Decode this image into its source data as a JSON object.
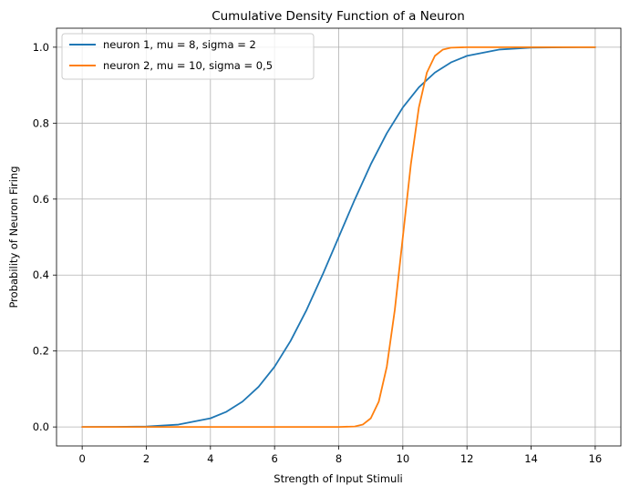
{
  "chart_data": {
    "type": "line",
    "title": "Cumulative Density Function of a Neuron",
    "xlabel": "Strength of Input Stimuli",
    "ylabel": "Probability of Neuron Firing",
    "xlim": [
      -0.8,
      16.8
    ],
    "ylim": [
      -0.05,
      1.05
    ],
    "xticks": [
      0,
      2,
      4,
      6,
      8,
      10,
      12,
      14,
      16
    ],
    "yticks": [
      0.0,
      0.2,
      0.4,
      0.6,
      0.8,
      1.0
    ],
    "xtick_labels": [
      "0",
      "2",
      "4",
      "6",
      "8",
      "10",
      "12",
      "14",
      "16"
    ],
    "ytick_labels": [
      "0.0",
      "0.2",
      "0.4",
      "0.6",
      "0.8",
      "1.0"
    ],
    "grid": true,
    "legend_position": "top-left",
    "series": [
      {
        "name": "neuron 1, mu = 8, sigma = 2",
        "color": "#1f77b4",
        "x": [
          0,
          1,
          2,
          3,
          4,
          4.5,
          5,
          5.5,
          6,
          6.5,
          7,
          7.5,
          8,
          8.5,
          9,
          9.5,
          10,
          10.5,
          11,
          11.5,
          12,
          13,
          14,
          15,
          16
        ],
        "y": [
          0.0,
          0.0002,
          0.0013,
          0.0062,
          0.0228,
          0.0401,
          0.0668,
          0.1056,
          0.1587,
          0.2266,
          0.3085,
          0.4013,
          0.5,
          0.5987,
          0.6915,
          0.7734,
          0.8413,
          0.8944,
          0.9332,
          0.9599,
          0.9772,
          0.9938,
          0.9987,
          0.9998,
          1.0
        ]
      },
      {
        "name": "neuron 2, mu = 10, sigma = 0,5",
        "color": "#ff7f0e",
        "x": [
          0,
          2,
          4,
          6,
          8,
          8.5,
          8.75,
          9,
          9.25,
          9.5,
          9.75,
          10,
          10.25,
          10.5,
          10.75,
          11,
          11.25,
          11.5,
          12,
          14,
          16
        ],
        "y": [
          0.0,
          0.0,
          0.0,
          0.0,
          0.0,
          0.0013,
          0.0062,
          0.0228,
          0.0668,
          0.1587,
          0.3085,
          0.5,
          0.6915,
          0.8413,
          0.9332,
          0.9772,
          0.9938,
          0.9987,
          1.0,
          1.0,
          1.0
        ]
      }
    ]
  }
}
